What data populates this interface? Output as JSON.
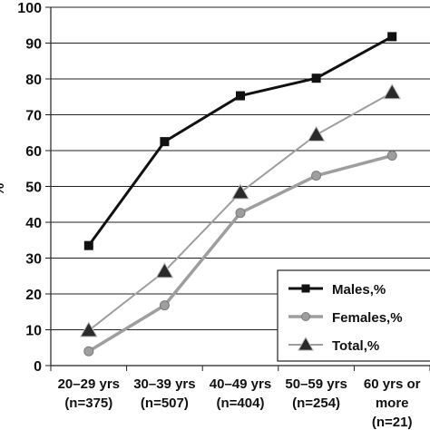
{
  "chart_data": {
    "type": "line",
    "title": "",
    "xlabel": "",
    "ylabel": "%",
    "ylim": [
      0,
      100
    ],
    "yticks": [
      "0",
      "10",
      "20",
      "30",
      "40",
      "50",
      "60",
      "70",
      "80",
      "90",
      "100"
    ],
    "grid": "horizontal",
    "legend_position": "bottom-right",
    "categories": [
      [
        "20–29 yrs",
        "(n=375)"
      ],
      [
        "30–39 yrs",
        "(n=507)"
      ],
      [
        "40–49 yrs",
        "(n=404)"
      ],
      [
        "50–59 yrs",
        "(n=254)"
      ],
      [
        "60 yrs or",
        "more",
        "(n=21)"
      ]
    ],
    "series": [
      {
        "name": "Males,%",
        "values": [
          33.5,
          62.5,
          75.3,
          80.2,
          91.8
        ],
        "color": "#111111",
        "marker": "square",
        "marker_color": "#111111"
      },
      {
        "name": "Females,%",
        "values": [
          4.0,
          16.8,
          42.6,
          53.0,
          58.6
        ],
        "color": "#9e9e9e",
        "marker": "circle",
        "marker_color": "#9e9e9e"
      },
      {
        "name": "Total,%",
        "values": [
          9.8,
          26.3,
          48.3,
          64.4,
          76.2
        ],
        "color": "#9e9e9e",
        "marker": "triangle",
        "marker_color": "#2a2a2a"
      }
    ]
  }
}
